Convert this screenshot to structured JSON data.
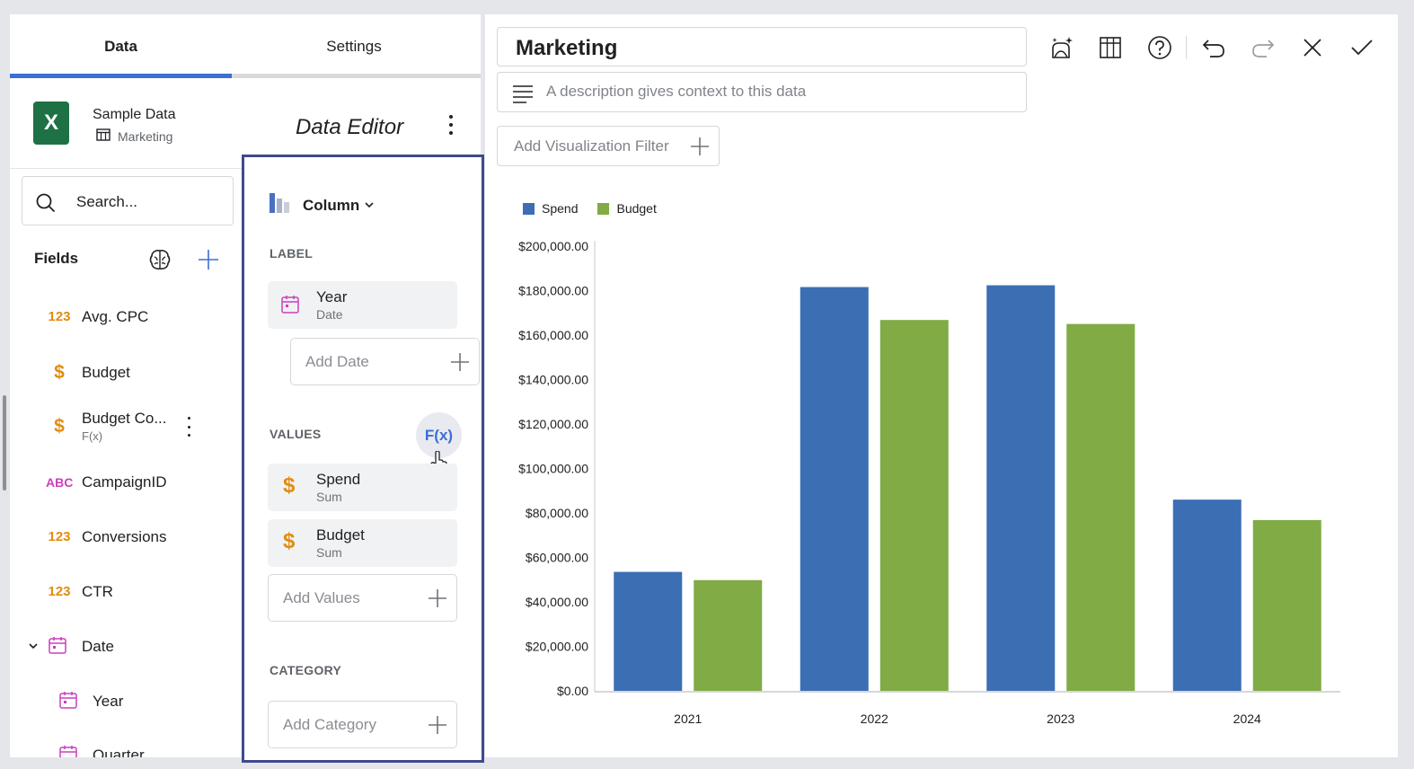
{
  "tabs": {
    "data": "Data",
    "settings": "Settings"
  },
  "source": {
    "name": "Sample Data",
    "sheet": "Marketing",
    "editor_title": "Data Editor"
  },
  "search": {
    "placeholder": "Search..."
  },
  "fields": {
    "header": "Fields",
    "items": [
      {
        "type": "123",
        "name": "Avg. CPC",
        "kind": "number"
      },
      {
        "type": "$",
        "name": "Budget",
        "kind": "currency"
      },
      {
        "type": "$",
        "name": "Budget Co...",
        "sub": "F(x)",
        "kind": "currency"
      },
      {
        "type": "ABC",
        "name": "CampaignID",
        "kind": "text"
      },
      {
        "type": "123",
        "name": "Conversions",
        "kind": "number"
      },
      {
        "type": "123",
        "name": "CTR",
        "kind": "number"
      },
      {
        "name": "Date",
        "kind": "date"
      },
      {
        "name": "Year",
        "kind": "date"
      },
      {
        "name": "Quarter",
        "kind": "date"
      }
    ]
  },
  "editor": {
    "chart_type": "Column",
    "label_section": "LABEL",
    "label_field": {
      "name": "Year",
      "sub": "Date"
    },
    "add_date": "Add Date",
    "values_section": "VALUES",
    "fx": "F(x)",
    "values": [
      {
        "name": "Spend",
        "sub": "Sum"
      },
      {
        "name": "Budget",
        "sub": "Sum"
      }
    ],
    "add_values": "Add Values",
    "category_section": "CATEGORY",
    "add_category": "Add Category"
  },
  "header": {
    "title": "Marketing",
    "description_placeholder": "A description gives context to this data",
    "filter_button": "Add Visualization Filter"
  },
  "colors": {
    "spend": "#3c6eb4",
    "budget": "#80ab45",
    "accent": "#3d6dd6",
    "editor_border": "#3e4a8f"
  },
  "chart_data": {
    "type": "bar",
    "categories": [
      "2021",
      "2022",
      "2023",
      "2024"
    ],
    "series": [
      {
        "name": "Spend",
        "values": [
          53500,
          181600,
          182400,
          86000
        ]
      },
      {
        "name": "Budget",
        "values": [
          49800,
          166800,
          165000,
          76800
        ]
      }
    ],
    "ylim": [
      0,
      200000
    ],
    "yticks": [
      "$0.00",
      "$20,000.00",
      "$40,000.00",
      "$60,000.00",
      "$80,000.00",
      "$100,000.00",
      "$120,000.00",
      "$140,000.00",
      "$160,000.00",
      "$180,000.00",
      "$200,000.00"
    ],
    "legend": "top-left",
    "grid": false
  }
}
